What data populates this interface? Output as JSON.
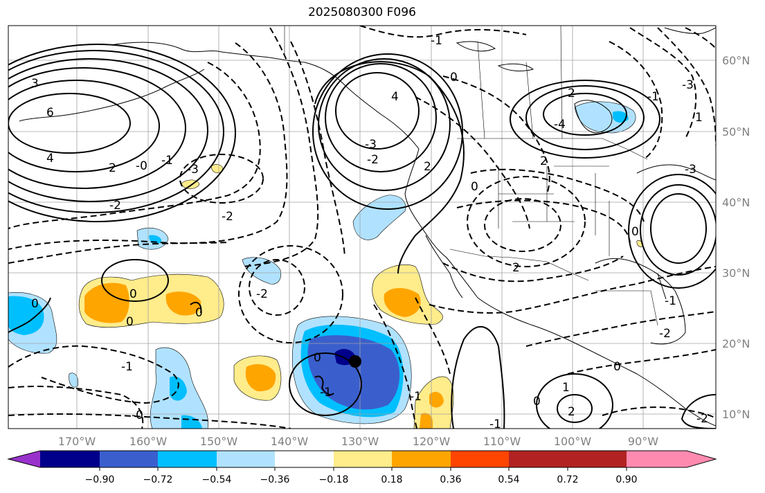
{
  "title": "2025080300 F096",
  "map": {
    "lat_labels": [
      "60°N",
      "50°N",
      "40°N",
      "30°N",
      "20°N",
      "10°N"
    ],
    "lon_labels": [
      "170°W",
      "160°W",
      "150°W",
      "140°W",
      "130°W",
      "120°W",
      "110°W",
      "100°W",
      "90°W"
    ],
    "contour_labels": [
      "3",
      "6",
      "4",
      "2",
      "-2",
      "-0",
      "-1",
      "-3",
      "4",
      "-3",
      "-2",
      "0",
      "-1",
      "2",
      "-4",
      "2",
      "0",
      "-1",
      "-3",
      "-2",
      "0",
      "-1",
      "2",
      "-2",
      "2",
      "0",
      "0",
      "0",
      "0",
      "-1",
      "-2",
      "-1",
      "0",
      "1",
      "2",
      "-1",
      "0",
      "-2",
      "-1",
      "1",
      "0",
      "-0",
      "-3"
    ],
    "colors": {
      "land": "#000000",
      "grid": "#a0a0a0",
      "pos_contour": "#000000",
      "neg_contour": "#000000"
    }
  },
  "colorbar": {
    "colors": [
      "#9932cc",
      "#00008b",
      "#3a5fcd",
      "#00bfff",
      "#b0e2ff",
      "#ffffff",
      "#ffec8b",
      "#ffa500",
      "#ff4500",
      "#b22222",
      "#ff8ab0"
    ],
    "tick_labels": [
      "−0.90",
      "−0.72",
      "−0.54",
      "−0.36",
      "−0.18",
      "0.18",
      "0.36",
      "0.54",
      "0.72",
      "0.90"
    ]
  }
}
